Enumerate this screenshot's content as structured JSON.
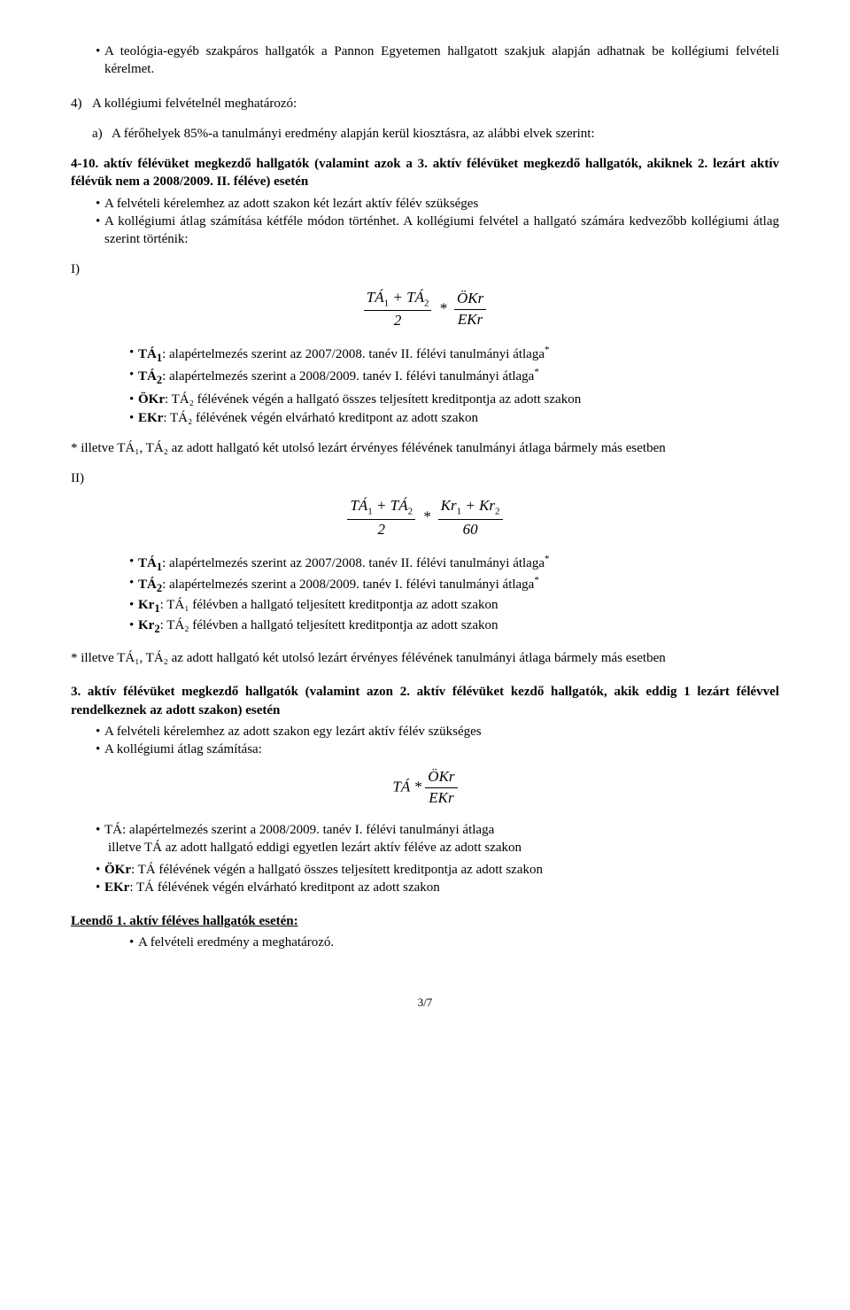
{
  "p1": "A teológia-egyéb szakpáros hallgatók a Pannon Egyetemen hallgatott szakjuk alapján adhatnak be kollégiumi felvételi kérelmet.",
  "p2_num": "4)",
  "p2": "A kollégiumi felvételnél meghatározó:",
  "p3_num": "a)",
  "p3": "A férőhelyek 85%-a tanulmányi eredmény alapján kerül kiosztásra, az alábbi elvek szerint:",
  "p4": "4-10. aktív félévüket megkezdő hallgatók (valamint azok a 3. aktív félévüket megkezdő hallgatók, akiknek 2. lezárt aktív félévük nem a 2008/2009. II. féléve) esetén",
  "p5": "A felvételi kérelemhez az adott szakon két lezárt aktív félév szükséges",
  "p6": "A kollégiumi átlag számítása kétféle módon történhet. A kollégiumi felvétel a hallgató számára kedvezőbb kollégiumi átlag szerint történik:",
  "label_I": "I)",
  "formula1_html": "<span class='frac'><span class='num'><i>TÁ</i><sub>1</sub> + <i>TÁ</i><sub>2</sub></span><span class='den'>2</span></span> &nbsp;*&nbsp; <span class='frac'><span class='num'><i>ÖKr</i></span><span class='den'><i>EKr</i></span></span>",
  "b1a": "TÁ",
  "b1b": ": alapértelmezés szerint az 2007/2008. tanév II. félévi tanulmányi átlaga",
  "b2a": "TÁ",
  "b2b": ": alapértelmezés szerint a 2008/2009. tanév I. félévi tanulmányi átlaga",
  "b3a": "ÖKr",
  "b3b": ": TÁ₂ félévének végén a hallgató összes teljesített kreditpontja az adott szakon",
  "b4a": "EKr",
  "b4b": ": TÁ₂ félévének végén elvárható kreditpont az adott szakon",
  "star_note": "* illetve TÁ₁, TÁ₂ az adott hallgató két utolsó lezárt érvényes félévének tanulmányi átlaga bármely más esetben",
  "label_II": "II)",
  "formula2_html": "<span class='frac'><span class='num'><i>TÁ</i><sub>1</sub> + <i>TÁ</i><sub>2</sub></span><span class='den'>2</span></span> &nbsp;*&nbsp; <span class='frac'><span class='num'><i>Kr</i><sub>1</sub> + <i>Kr</i><sub>2</sub></span><span class='den'>60</span></span>",
  "c3a": "Kr",
  "c3b": ": TÁ₁ félévben a hallgató teljesített kreditpontja az adott szakon",
  "c4a": "Kr",
  "c4b": ": TÁ₂ félévben a hallgató teljesített kreditpontja az adott szakon",
  "sec3": "3. aktív félévüket megkezdő hallgatók (valamint azon 2. aktív félévüket kezdő hallgatók, akik eddig 1 lezárt félévvel rendelkeznek az adott szakon) esetén",
  "d1": "A felvételi kérelemhez az adott szakon egy lezárt aktív félév szükséges",
  "d2": "A kollégiumi átlag számítása:",
  "formula3_html": "<i>TÁ</i> * <span class='frac'><span class='num'><i>ÖKr</i></span><span class='den'><i>EKr</i></span></span>",
  "e1": "TÁ: alapértelmezés szerint a 2008/2009. tanév I. félévi tanulmányi átlaga",
  "e1b": "illetve TÁ az adott hallgató eddigi egyetlen lezárt aktív féléve az adott szakon",
  "e2a": "ÖKr",
  "e2b": ": TÁ félévének végén a hallgató összes teljesített kreditpontja az adott szakon",
  "e3a": "EKr",
  "e3b": ": TÁ félévének végén elvárható kreditpont az adott szakon",
  "leendo": "Leendő 1. aktív féléves hallgatók esetén:",
  "f1": "A felvételi eredmény a meghatározó.",
  "pagenum": "3/7",
  "sub1": "1",
  "sub2": "2",
  "star": "*"
}
